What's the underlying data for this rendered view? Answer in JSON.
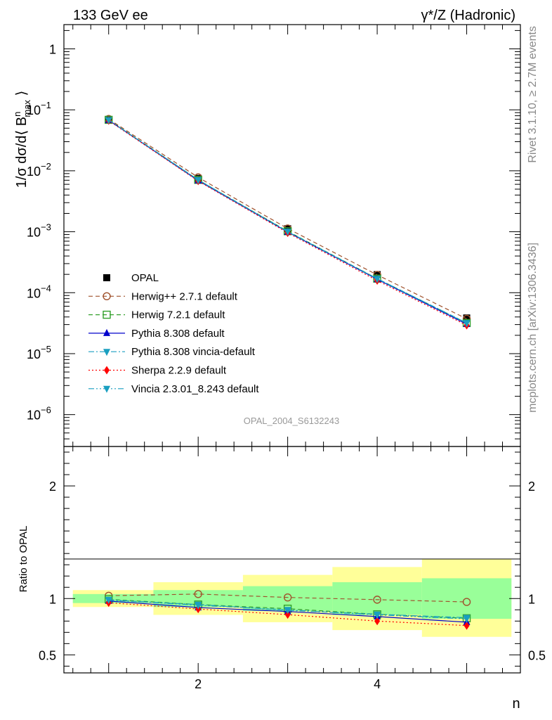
{
  "header": {
    "left": "133 GeV ee",
    "right": "γ*/Z (Hadronic)"
  },
  "side_labels": {
    "rivet": "Rivet 3.1.10, ≥ 2.7M events",
    "mcplots": "mcplots.cern.ch [arXiv:1306.3436]"
  },
  "analysis_id": "OPAL_2004_S6132243",
  "chart_data": [
    {
      "type": "scatter",
      "panel": "main",
      "ylabel": "1/σ dσ/d⟨ B^n_max ⟩",
      "yscale": "log",
      "xlim": [
        0.5,
        5.6
      ],
      "ylim": [
        3e-07,
        2.5
      ],
      "y_ticks": [
        {
          "value": 1,
          "mantissa": "1",
          "exp": ""
        },
        {
          "value": 0.1,
          "mantissa": "10",
          "exp": "−1"
        },
        {
          "value": 0.01,
          "mantissa": "10",
          "exp": "−2"
        },
        {
          "value": 0.001,
          "mantissa": "10",
          "exp": "−3"
        },
        {
          "value": 0.0001,
          "mantissa": "10",
          "exp": "−4"
        },
        {
          "value": 1e-05,
          "mantissa": "10",
          "exp": "−5"
        },
        {
          "value": 1e-06,
          "mantissa": "10",
          "exp": "−6"
        }
      ],
      "x": [
        1,
        2,
        3,
        4,
        5
      ],
      "series": [
        {
          "name": "OPAL",
          "values": [
            0.069,
            0.0075,
            0.00112,
            0.000198,
            3.85e-05
          ],
          "color": "#000000",
          "marker": "square-filled",
          "line": "none"
        },
        {
          "name": "Herwig++ 2.7.1 default",
          "values": [
            0.0707,
            0.0078,
            0.00113,
            0.000196,
            3.73e-05
          ],
          "color": "#a0522d",
          "marker": "circle-open",
          "line": "dashed"
        },
        {
          "name": "Herwig 7.2.1 default",
          "values": [
            0.0685,
            0.0071,
            0.00102,
            0.00017,
            3.18e-05
          ],
          "color": "#33a02c",
          "marker": "square-open",
          "line": "dashed"
        },
        {
          "name": "Pythia 8.308 default",
          "values": [
            0.0675,
            0.0069,
            0.00099,
            0.000166,
            3.05e-05
          ],
          "color": "#0000cc",
          "marker": "triangle-up",
          "line": "solid"
        },
        {
          "name": "Pythia 8.308 vincia-default",
          "values": [
            0.068,
            0.0071,
            0.001,
            0.00017,
            3.2e-05
          ],
          "color": "#1a9fc0",
          "marker": "triangle-down",
          "line": "dashdot"
        },
        {
          "name": "Sherpa 2.2.9 default",
          "values": [
            0.0665,
            0.0068,
            0.00096,
            0.000158,
            2.92e-05
          ],
          "color": "#ff0000",
          "marker": "diamond",
          "line": "dotted"
        },
        {
          "name": "Vincia 2.3.01_8.243 default",
          "values": [
            0.0682,
            0.00705,
            0.00101,
            0.000168,
            3.15e-05
          ],
          "color": "#1a9fc0",
          "marker": "triangle-down",
          "line": "dashdotdot"
        }
      ]
    },
    {
      "type": "scatter",
      "panel": "ratio",
      "xlabel": "n",
      "ylabel": "Ratio to OPAL",
      "xlim": [
        0.5,
        5.6
      ],
      "ylim": [
        0.34,
        2.35
      ],
      "x_ticks": [
        2,
        4
      ],
      "y_ticks": [
        0.5,
        1,
        2
      ],
      "x": [
        1,
        2,
        3,
        4,
        5
      ],
      "bands": {
        "edges": [
          0.6,
          1.5,
          2.5,
          3.5,
          4.5,
          5.5
        ],
        "inner": [
          [
            0.96,
            1.04
          ],
          [
            0.925,
            1.075
          ],
          [
            0.89,
            1.11
          ],
          [
            0.855,
            1.145
          ],
          [
            0.82,
            1.18
          ]
        ],
        "outer": [
          [
            0.925,
            1.075
          ],
          [
            0.855,
            1.145
          ],
          [
            0.79,
            1.21
          ],
          [
            0.72,
            1.28
          ],
          [
            0.66,
            1.35
          ]
        ]
      },
      "series": [
        {
          "name": "Herwig++ 2.7.1 default",
          "values": [
            1.025,
            1.04,
            1.01,
            0.99,
            0.97
          ]
        },
        {
          "name": "Herwig 7.2.1 default",
          "values": [
            0.993,
            0.947,
            0.91,
            0.86,
            0.825
          ]
        },
        {
          "name": "Pythia 8.308 default",
          "values": [
            0.978,
            0.92,
            0.885,
            0.84,
            0.79
          ]
        },
        {
          "name": "Pythia 8.308 vincia-default",
          "values": [
            0.985,
            0.947,
            0.895,
            0.86,
            0.83
          ]
        },
        {
          "name": "Sherpa 2.2.9 default",
          "values": [
            0.963,
            0.907,
            0.857,
            0.8,
            0.76
          ]
        },
        {
          "name": "Vincia 2.3.01_8.243 default",
          "values": [
            0.99,
            0.94,
            0.9,
            0.855,
            0.82
          ]
        }
      ]
    }
  ]
}
